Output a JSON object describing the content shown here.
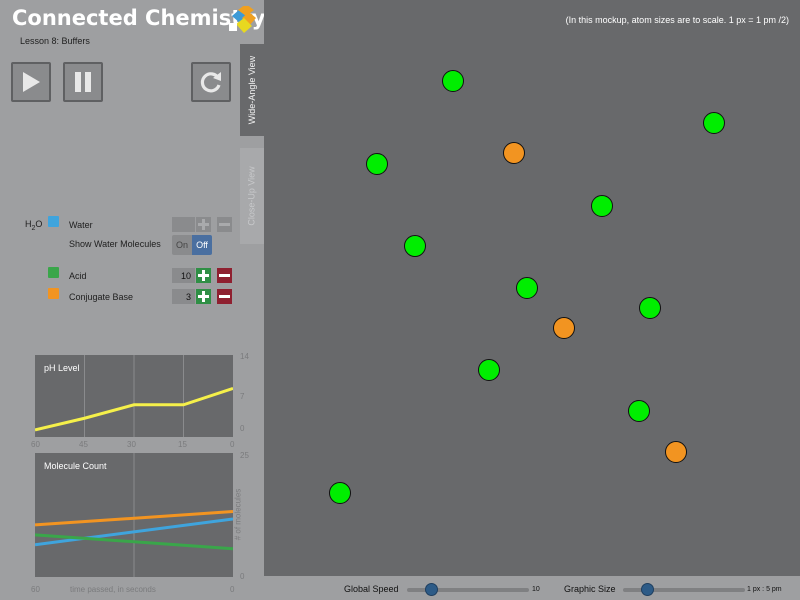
{
  "app": {
    "title": "Connected Chemistry",
    "lesson": "Lesson 8: Buffers",
    "logo_colors": [
      "#3d9ad6",
      "#f0a020",
      "#e8d820"
    ]
  },
  "controls": {
    "play_icon": "play-icon",
    "pause_icon": "pause-icon",
    "reset_icon": "reset-icon"
  },
  "tabs": {
    "wide": "Wide-Angle View",
    "close": "Close-Up View"
  },
  "molecules": {
    "h2o_label": "H",
    "h2o_sub": "2",
    "h2o_suffix": "O",
    "water": {
      "label": "Water",
      "color": "#3fa4dd",
      "value": ""
    },
    "show_water": {
      "label": "Show Water Molecules",
      "on": "On",
      "off": "Off",
      "selected": "Off"
    },
    "acid": {
      "label": "Acid",
      "color": "#3aa64a",
      "value": "10"
    },
    "base": {
      "label": "Conjugate Base",
      "color": "#f29421",
      "value": "3"
    }
  },
  "ph_graph": {
    "title": "pH Level",
    "y_ticks": [
      "14",
      "7",
      "0"
    ],
    "x_ticks": [
      "60",
      "45",
      "30",
      "15",
      "0"
    ]
  },
  "count_graph": {
    "title": "Molecule Count",
    "y_ticks": [
      "25",
      "0"
    ],
    "y_label": "# of molecules",
    "x_ticks": [
      "60",
      "0"
    ],
    "x_label": "time passed, in seconds"
  },
  "chart_data": [
    {
      "type": "line",
      "title": "pH Level",
      "x": [
        60,
        45,
        30,
        15,
        0
      ],
      "xlim": [
        60,
        0
      ],
      "ylim": [
        0,
        14
      ],
      "series": [
        {
          "color": "#f5f04a",
          "values": [
            1.2,
            3.2,
            5.5,
            5.5,
            8.3
          ]
        }
      ]
    },
    {
      "type": "line",
      "title": "Molecule Count",
      "x": [
        60,
        0
      ],
      "xlim": [
        60,
        0
      ],
      "ylim": [
        0,
        25
      ],
      "xlabel": "time passed, in seconds",
      "ylabel": "# of molecules",
      "series": [
        {
          "color": "#f29421",
          "values": [
            10.5,
            13.2
          ]
        },
        {
          "color": "#3fa4dd",
          "values": [
            6.5,
            11.7
          ]
        },
        {
          "color": "#3aa64a",
          "values": [
            8.5,
            5.7
          ]
        }
      ]
    }
  ],
  "simulation": {
    "note": "(In this mockup, atom sizes are to scale.  1 px = 1 pm /2)",
    "acid_color": "#00ee00",
    "base_color": "#f29421"
  },
  "bottom": {
    "speed_label": "Global Speed",
    "speed_value": "10",
    "speed_fraction": 0.2,
    "size_label": "Graphic Size",
    "size_value": "1 px : 5 pm",
    "size_fraction": 0.2
  }
}
